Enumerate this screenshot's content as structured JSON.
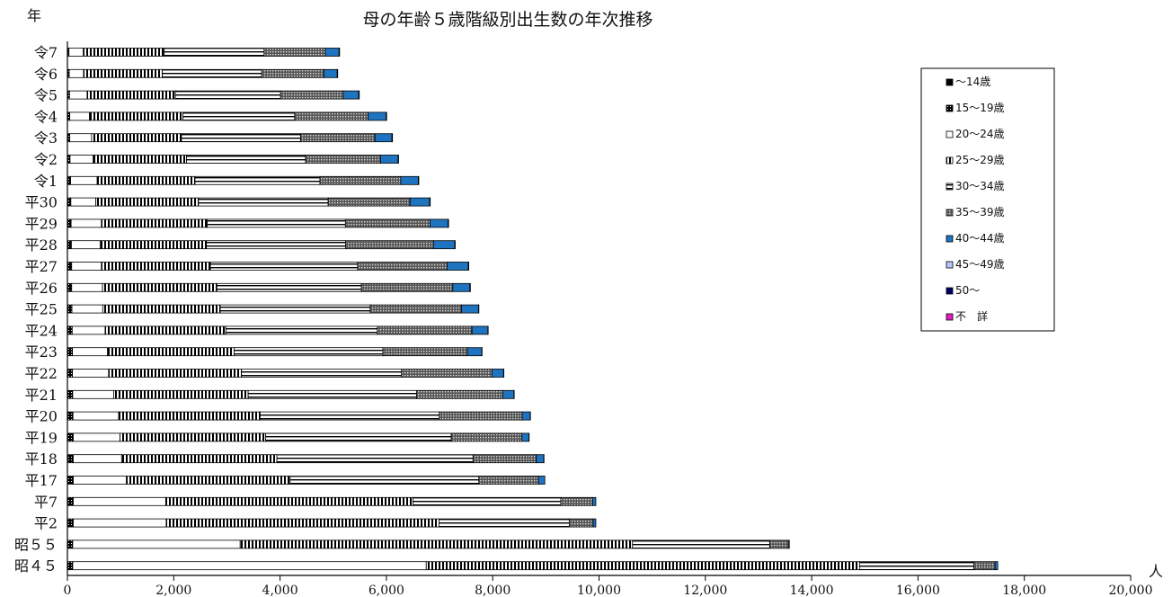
{
  "chart_data": {
    "type": "bar",
    "orientation": "horizontal",
    "stacked": true,
    "title": "母の年齢５歳階級別出生数の年次推移",
    "ylabel": "年",
    "xlabel": "人",
    "xlim": [
      0,
      20000
    ],
    "x_ticks": [
      "0",
      "2,000",
      "4,000",
      "6,000",
      "8,000",
      "10,000",
      "12,000",
      "14,000",
      "16,000",
      "18,000",
      "20,000"
    ],
    "grid": false,
    "legend_position": "right",
    "categories": [
      "令7",
      "令6",
      "令5",
      "令4",
      "令3",
      "令2",
      "令1",
      "平30",
      "平29",
      "平28",
      "平27",
      "平26",
      "平25",
      "平24",
      "平23",
      "平22",
      "平21",
      "平20",
      "平19",
      "平18",
      "平17",
      "平7",
      "平2",
      "昭５５",
      "昭４５"
    ],
    "series": [
      {
        "name": "～14歳",
        "color": "#000000",
        "pattern": "solid",
        "values": [
          0,
          0,
          0,
          0,
          0,
          0,
          0,
          0,
          0,
          0,
          0,
          0,
          0,
          0,
          0,
          0,
          0,
          0,
          0,
          0,
          0,
          0,
          0,
          0,
          0
        ]
      },
      {
        "name": "15～19歳",
        "color": "#000000",
        "pattern": "dense",
        "values": [
          30,
          35,
          40,
          45,
          45,
          50,
          60,
          65,
          70,
          75,
          80,
          80,
          85,
          90,
          95,
          95,
          100,
          105,
          110,
          110,
          110,
          110,
          110,
          100,
          100
        ]
      },
      {
        "name": "20～24歳",
        "color": "#ffffff",
        "pattern": "white",
        "values": [
          270,
          270,
          330,
          370,
          410,
          430,
          500,
          470,
          570,
          540,
          560,
          580,
          580,
          620,
          660,
          680,
          770,
          860,
          880,
          910,
          1000,
          1740,
          1750,
          3150,
          6650
        ]
      },
      {
        "name": "25～29歳",
        "color": "#ffffff",
        "pattern": "vstripe",
        "values": [
          1520,
          1480,
          1660,
          1760,
          1690,
          1760,
          1840,
          1930,
          1990,
          2000,
          2050,
          2150,
          2210,
          2270,
          2380,
          2500,
          2530,
          2660,
          2740,
          2920,
          3080,
          4650,
          5130,
          7380,
          8150
        ]
      },
      {
        "name": "30～34歳",
        "color": "#ffffff",
        "pattern": "hstripe",
        "values": [
          1880,
          1870,
          1980,
          2100,
          2240,
          2240,
          2350,
          2440,
          2600,
          2620,
          2770,
          2720,
          2820,
          2850,
          2800,
          3010,
          3170,
          3370,
          3490,
          3690,
          3550,
          2780,
          2450,
          2580,
          2150
        ]
      },
      {
        "name": "35～39歳",
        "color": "#444444",
        "pattern": "dots",
        "values": [
          1150,
          1170,
          1180,
          1380,
          1400,
          1410,
          1520,
          1540,
          1590,
          1650,
          1680,
          1720,
          1720,
          1780,
          1590,
          1700,
          1620,
          1560,
          1330,
          1190,
          1120,
          600,
          450,
          350,
          400
        ]
      },
      {
        "name": "40～44歳",
        "color": "#1f74c0",
        "pattern": "solid",
        "values": [
          260,
          250,
          290,
          340,
          320,
          330,
          330,
          370,
          340,
          400,
          400,
          320,
          320,
          300,
          270,
          220,
          210,
          150,
          130,
          140,
          120,
          60,
          50,
          20,
          50
        ]
      },
      {
        "name": "45～49歳",
        "color": "#b8c8ff",
        "pattern": "solid",
        "values": [
          10,
          10,
          10,
          10,
          10,
          10,
          10,
          10,
          10,
          10,
          10,
          10,
          5,
          5,
          5,
          5,
          5,
          5,
          5,
          5,
          0,
          0,
          0,
          0,
          0
        ]
      },
      {
        "name": "50～",
        "color": "#000066",
        "pattern": "solid",
        "values": [
          0,
          0,
          0,
          0,
          0,
          0,
          0,
          0,
          0,
          0,
          0,
          0,
          0,
          0,
          0,
          0,
          0,
          0,
          0,
          0,
          0,
          0,
          0,
          0,
          0
        ]
      },
      {
        "name": "不　詳",
        "color": "#e020c0",
        "pattern": "solid",
        "values": [
          0,
          0,
          0,
          0,
          0,
          0,
          0,
          0,
          0,
          0,
          0,
          0,
          0,
          0,
          0,
          0,
          0,
          0,
          0,
          0,
          0,
          0,
          0,
          0,
          0
        ]
      }
    ]
  }
}
